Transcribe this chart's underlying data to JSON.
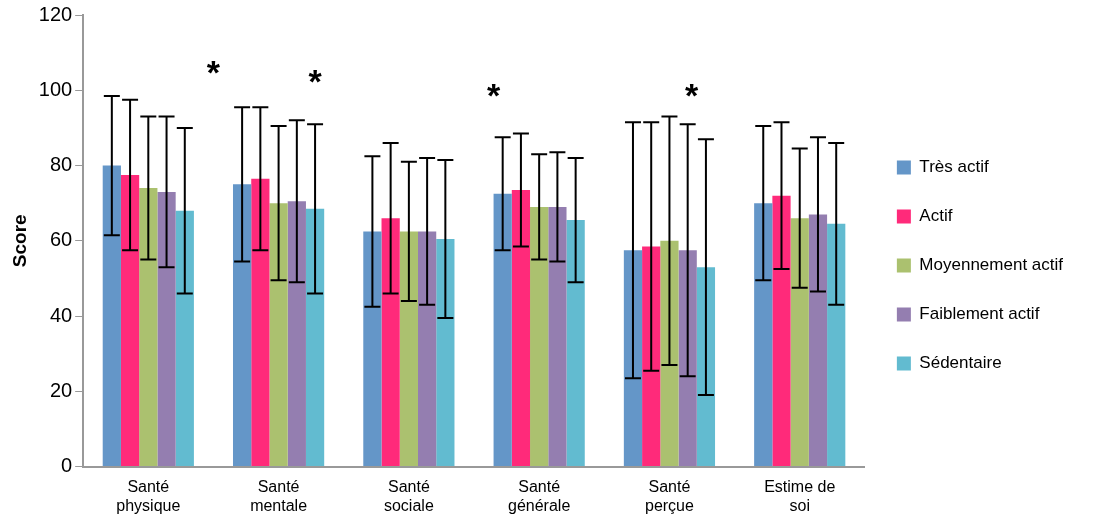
{
  "chart_data": {
    "type": "bar",
    "ylabel": "Score",
    "categories": [
      "Santé physique",
      "Santé mentale",
      "Santé sociale",
      "Santé générale",
      "Santé perçue",
      "Estime de soi"
    ],
    "series": [
      {
        "name": "Très actif",
        "color": "#6496c8",
        "values": [
          80,
          75,
          62.5,
          72.5,
          57.5,
          70
        ],
        "errors": [
          18.5,
          20.5,
          20,
          15,
          34,
          20.5
        ]
      },
      {
        "name": "Actif",
        "color": "#ff2a7a",
        "values": [
          77.5,
          76.5,
          66,
          73.5,
          58.5,
          72
        ],
        "errors": [
          20,
          19,
          20,
          15,
          33,
          19.5
        ]
      },
      {
        "name": "Moyennement actif",
        "color": "#abc16f",
        "values": [
          74,
          70,
          62.5,
          69,
          60,
          66
        ],
        "errors": [
          19,
          20.5,
          18.5,
          14,
          33,
          18.5
        ]
      },
      {
        "name": "Faiblement actif",
        "color": "#947eb0",
        "values": [
          73,
          70.5,
          62.5,
          69,
          57.5,
          67
        ],
        "errors": [
          20,
          21.5,
          19.5,
          14.5,
          33.5,
          20.5
        ]
      },
      {
        "name": "Sédentaire",
        "color": "#62bbd0",
        "values": [
          68,
          68.5,
          60.5,
          65.5,
          53,
          64.5
        ],
        "errors": [
          22,
          22.5,
          21,
          16.5,
          34,
          21.5
        ]
      }
    ],
    "ylim": [
      0,
      120
    ],
    "yticks": [
      0,
      20,
      40,
      60,
      80,
      100,
      120
    ],
    "grid": false,
    "legend": "right",
    "annotations": [
      "*",
      "*",
      "*",
      "*"
    ]
  }
}
